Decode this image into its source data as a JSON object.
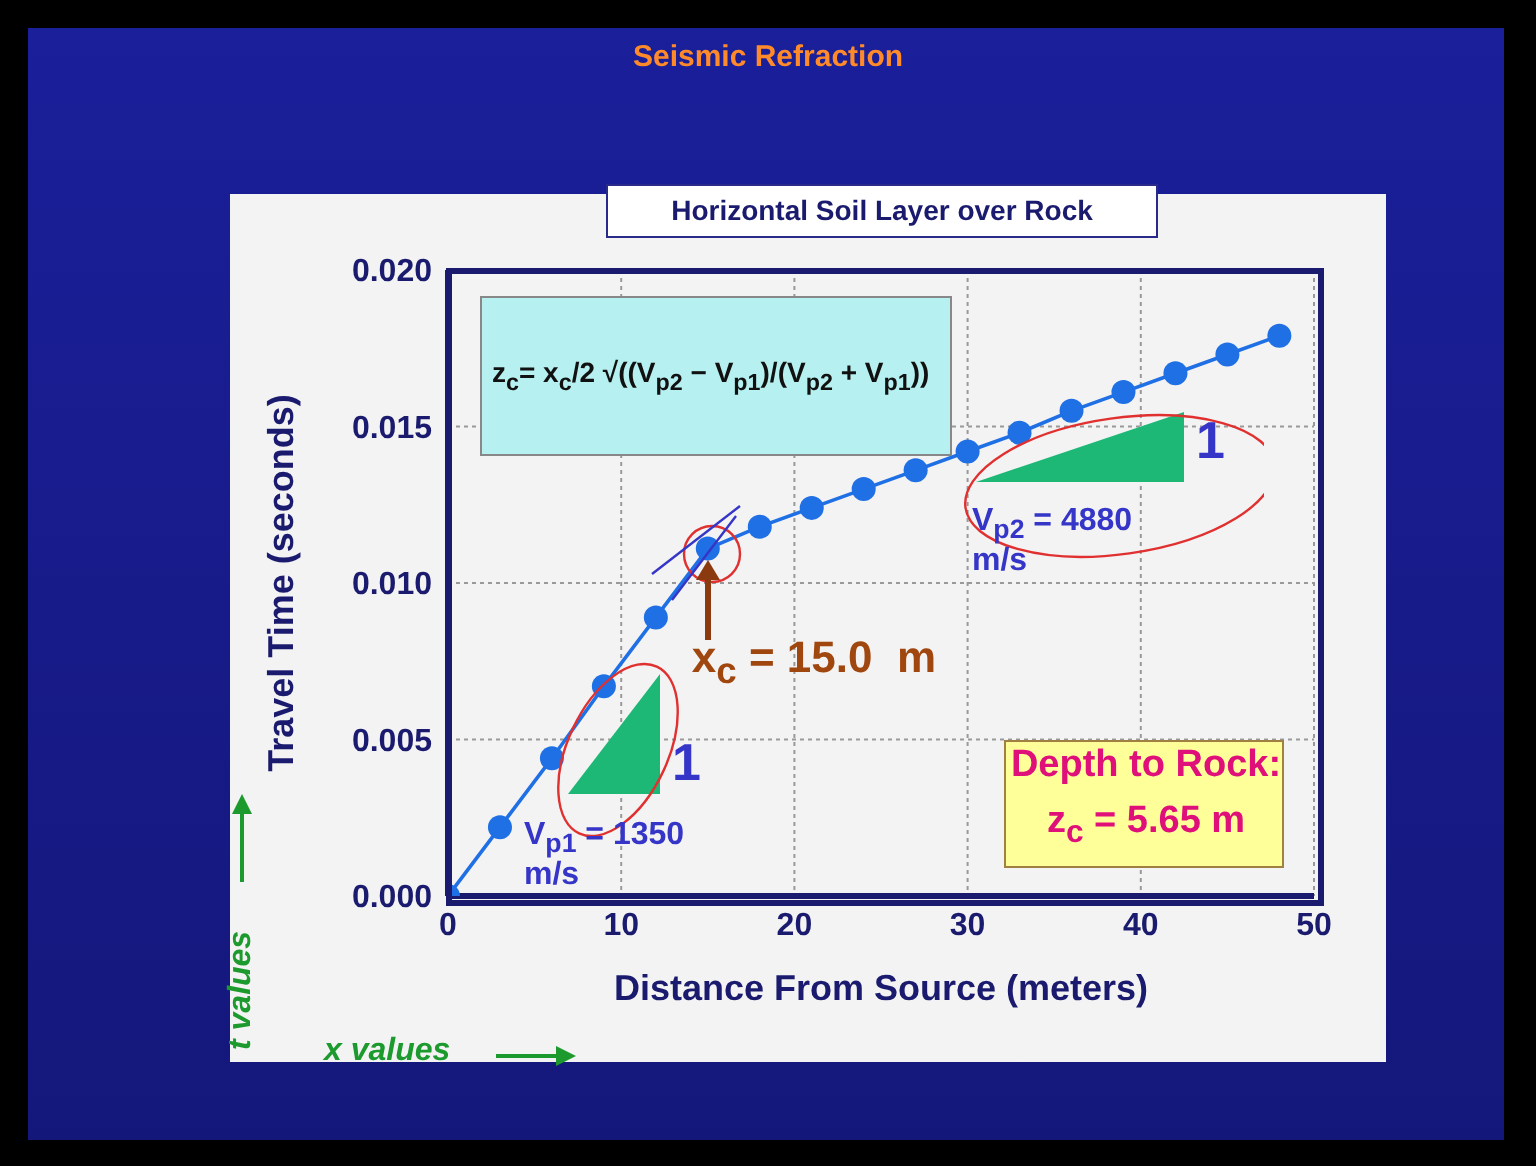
{
  "chart_data": {
    "type": "line",
    "title": "Seismic Refraction",
    "subtitle": "Horizontal Soil Layer over Rock",
    "xlabel": "Distance From Source (meters)",
    "ylabel": "Travel Time (seconds)",
    "x": [
      0,
      3,
      6,
      9,
      12,
      15,
      18,
      21,
      24,
      27,
      30,
      33,
      36,
      39,
      42,
      45,
      48
    ],
    "series": [
      {
        "color": "#1f6fe5",
        "values": [
          0,
          0.0022,
          0.0044,
          0.0067,
          0.0089,
          0.0111,
          0.0118,
          0.0124,
          0.013,
          0.0136,
          0.0142,
          0.0148,
          0.0155,
          0.0161,
          0.0167,
          0.0173,
          0.0179
        ]
      }
    ],
    "xlim": [
      0,
      50
    ],
    "xticks": [
      0,
      10,
      20,
      30,
      40,
      50
    ],
    "ylim": [
      0,
      0.02
    ],
    "yticks": [
      {
        "value": 0,
        "label": "0.000"
      },
      {
        "value": 0.005,
        "label": "0.005"
      },
      {
        "value": 0.01,
        "label": "0.010"
      },
      {
        "value": 0.015,
        "label": "0.015"
      },
      {
        "value": 0.02,
        "label": "0.020"
      }
    ],
    "grid": true,
    "marker": "circle",
    "line_style": "solid",
    "annotations": [
      "z$_{c}$= x$_{c}$/2 √((V$_{p2}$ − V$_{p1}$)/(V$_{p2}$ + V$_{p1}$))",
      {
        "text": "x$_{c}$ = 15.0  m",
        "x": 15,
        "y": 0.0111
      },
      "V$_{p1}$ = 1350 m/s",
      "V$_{p2}$ = 4880 m/s",
      "Depth to Rock:",
      "z$_{c}$ = 5.65 m",
      "1",
      "1",
      "t values",
      "x values"
    ]
  }
}
